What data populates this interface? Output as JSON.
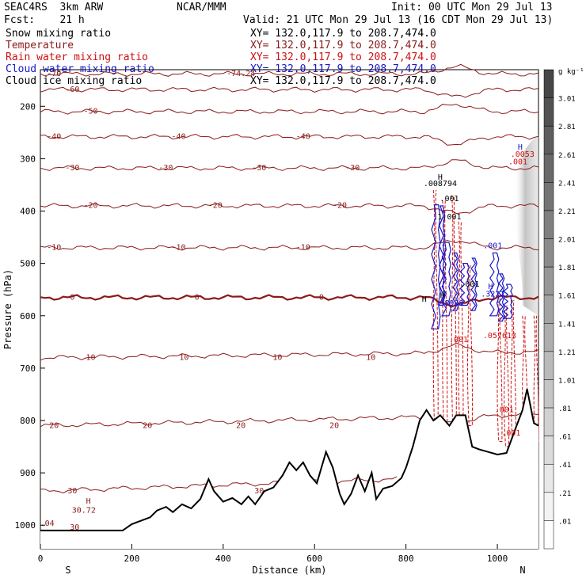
{
  "header": {
    "model": "SEAC4RS  3km ARW",
    "org": "NCAR/MMM",
    "init": "Init: 00 UTC Mon 29 Jul 13",
    "fcst": "Fcst:    21 h",
    "valid": "Valid: 21 UTC Mon 29 Jul 13 (16 CDT Mon 29 Jul 13)"
  },
  "fields": [
    {
      "name": "Snow mixing ratio",
      "xy": "XY= 132.0,117.9 to 208.7,474.0",
      "color": "#000000"
    },
    {
      "name": "Temperature",
      "xy": "XY= 132.0,117.9 to 208.7,474.0",
      "color": "#8b1a1a"
    },
    {
      "name": "Rain water mixing ratio",
      "xy": "XY= 132.0,117.9 to 208.7,474.0",
      "color": "#d01010"
    },
    {
      "name": "Cloud water mixing ratio",
      "xy": "XY= 132.0,117.9 to 208.7,474.0",
      "color": "#1818c8"
    },
    {
      "name": "Cloud ice mixing ratio",
      "xy": "XY= 132.0,117.9 to 208.7,474.0",
      "color": "#000000"
    }
  ],
  "chart_data": {
    "type": "contour cross-section",
    "xlabel": "Distance (km)",
    "ylabel": "Pressure (hPa)",
    "x_ticks": [
      0,
      200,
      400,
      600,
      800,
      1000
    ],
    "y_ticks": [
      200,
      300,
      400,
      500,
      600,
      700,
      800,
      900,
      1000
    ],
    "xlim": [
      0,
      1090
    ],
    "ylim": [
      1045,
      130
    ],
    "x_end_labels": {
      "left": "S",
      "right": "N"
    },
    "colorbar": {
      "unit": "g kg⁻¹",
      "labels": [
        "3.01",
        "2.81",
        "2.61",
        "2.41",
        "2.21",
        "2.01",
        "1.81",
        "1.61",
        "1.41",
        "1.21",
        "1.01",
        ".81",
        ".61",
        ".41",
        ".21",
        ".01"
      ]
    },
    "temperature_levels": [
      {
        "t": -70,
        "p": 138,
        "labels": [
          "-70",
          "-74.24"
        ]
      },
      {
        "t": -60,
        "p": 168,
        "labels": [
          "-60"
        ]
      },
      {
        "t": -50,
        "p": 210,
        "labels": [
          "-50"
        ]
      },
      {
        "t": -40,
        "p": 258,
        "labels": [
          "-40",
          "-40",
          "-40"
        ]
      },
      {
        "t": -30,
        "p": 318,
        "labels": [
          "-30",
          "-30",
          "-30",
          "-30"
        ]
      },
      {
        "t": -20,
        "p": 390,
        "labels": [
          "-20",
          "-20",
          "-20"
        ]
      },
      {
        "t": -10,
        "p": 470,
        "labels": [
          "-10",
          "-10",
          "-10"
        ]
      },
      {
        "t": 0,
        "p": 565,
        "labels": [
          "0",
          "0",
          "0"
        ]
      },
      {
        "t": 10,
        "p": 680,
        "labels": [
          "10",
          "10",
          "10",
          "10"
        ]
      },
      {
        "t": 20,
        "p": 810,
        "labels": [
          "20",
          "20",
          "20",
          "20"
        ]
      },
      {
        "t": 30,
        "p": 935,
        "labels": [
          "30",
          "30"
        ]
      }
    ],
    "terrain_surface_hpa": [
      [
        0,
        1010
      ],
      [
        180,
        1010
      ],
      [
        200,
        998
      ],
      [
        240,
        985
      ],
      [
        255,
        972
      ],
      [
        275,
        965
      ],
      [
        290,
        975
      ],
      [
        310,
        960
      ],
      [
        330,
        968
      ],
      [
        350,
        950
      ],
      [
        368,
        912
      ],
      [
        380,
        935
      ],
      [
        400,
        955
      ],
      [
        420,
        948
      ],
      [
        440,
        960
      ],
      [
        455,
        945
      ],
      [
        470,
        960
      ],
      [
        490,
        935
      ],
      [
        510,
        928
      ],
      [
        530,
        905
      ],
      [
        545,
        880
      ],
      [
        560,
        895
      ],
      [
        575,
        880
      ],
      [
        590,
        905
      ],
      [
        605,
        920
      ],
      [
        625,
        860
      ],
      [
        640,
        890
      ],
      [
        655,
        940
      ],
      [
        665,
        960
      ],
      [
        680,
        940
      ],
      [
        695,
        905
      ],
      [
        710,
        935
      ],
      [
        725,
        900
      ],
      [
        735,
        950
      ],
      [
        750,
        930
      ],
      [
        770,
        925
      ],
      [
        790,
        910
      ],
      [
        800,
        890
      ],
      [
        815,
        850
      ],
      [
        830,
        800
      ],
      [
        845,
        780
      ],
      [
        860,
        800
      ],
      [
        875,
        790
      ],
      [
        895,
        810
      ],
      [
        910,
        790
      ],
      [
        930,
        790
      ],
      [
        945,
        850
      ],
      [
        960,
        855
      ],
      [
        980,
        860
      ],
      [
        1000,
        865
      ],
      [
        1020,
        862
      ],
      [
        1040,
        815
      ],
      [
        1055,
        780
      ],
      [
        1065,
        740
      ],
      [
        1080,
        805
      ],
      [
        1090,
        810
      ]
    ],
    "annotations": [
      {
        "text": "H",
        "x": 105,
        "p": 953
      },
      {
        "text": "30.72",
        "x": 95,
        "p": 970
      },
      {
        "text": ".04",
        "x": 15,
        "p": 995
      },
      {
        "text": "30",
        "x": 75,
        "p": 1003
      },
      {
        "text": "H",
        "x": 875,
        "p": 334
      },
      {
        "text": ".008794",
        "x": 875,
        "p": 346
      },
      {
        "text": ".001",
        "x": 895,
        "p": 375
      },
      {
        "text": ".001",
        "x": 940,
        "p": 538
      },
      {
        "text": "H",
        "x": 880,
        "p": 560
      },
      {
        "text": ".8988",
        "x": 900,
        "p": 575
      },
      {
        "text": "H",
        "x": 985,
        "p": 543
      },
      {
        "text": ".3222",
        "x": 990,
        "p": 557
      },
      {
        "text": ".001",
        "x": 990,
        "p": 465
      },
      {
        "text": ".057613",
        "x": 1005,
        "p": 637
      },
      {
        "text": ".001",
        "x": 915,
        "p": 644
      },
      {
        "text": "H",
        "x": 840,
        "p": 567
      },
      {
        "text": ".001",
        "x": 1015,
        "p": 778
      },
      {
        "text": ".001",
        "x": 1030,
        "p": 823
      },
      {
        "text": "H",
        "x": 1050,
        "p": 277
      },
      {
        "text": ".0053",
        "x": 1055,
        "p": 290
      },
      {
        "text": ".001",
        "x": 1045,
        "p": 305
      },
      {
        "text": "1.001",
        "x": 895,
        "p": 410
      }
    ]
  }
}
